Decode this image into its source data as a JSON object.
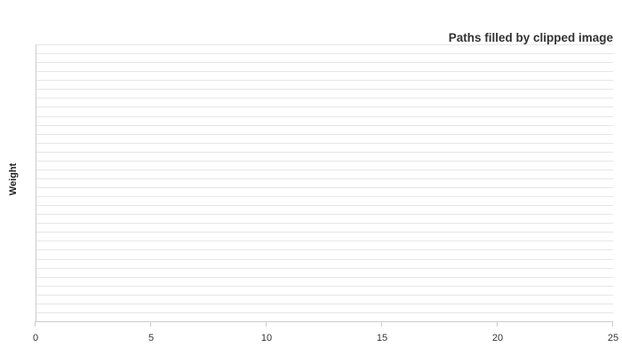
{
  "chart_data": {
    "type": "bar",
    "title": "Paths filled by clipped image",
    "xlabel": "",
    "ylabel": "Weight",
    "xlim": [
      0,
      25
    ],
    "x_ticks": [
      "0",
      "5",
      "10",
      "15",
      "20",
      "25"
    ],
    "x_tick_values": [
      0,
      5,
      10,
      15,
      20,
      25
    ],
    "category_count": 31,
    "series": [],
    "grid": true,
    "legend": "none",
    "colors": {
      "grid": "#e6e6e6",
      "axis": "#cccccc",
      "title": "#333333",
      "text": "#333333"
    }
  }
}
